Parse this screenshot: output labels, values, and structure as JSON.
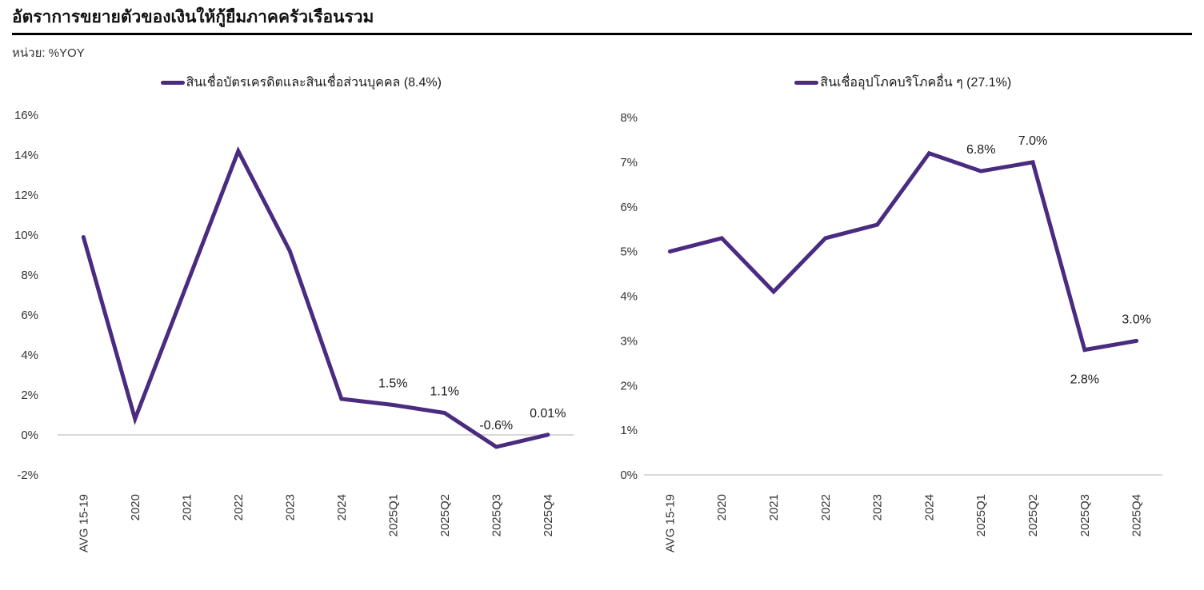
{
  "page": {
    "title": "อัตราการขยายตัวของเงินให้กู้ยืมภาคครัวเรือนรวม",
    "unit_label": "หน่วย: %YOY"
  },
  "colors": {
    "line": "#4A2B80",
    "grid": "#D9D9D9",
    "axis_text": "#333333",
    "title_rule": "#000000"
  },
  "chart_data": [
    {
      "type": "line",
      "legend": "สินเชื่อบัตรเครดิตและสินเชื่อส่วนบุคคล (8.4%)",
      "legend_position": "top-center",
      "categories": [
        "AVG 15-19",
        "2020",
        "2021",
        "2022",
        "2023",
        "2024",
        "2025Q1",
        "2025Q2",
        "2025Q3",
        "2025Q4"
      ],
      "values": [
        9.9,
        0.8,
        7.5,
        14.2,
        9.2,
        1.8,
        1.5,
        1.1,
        -0.6,
        0.01
      ],
      "point_labels": [
        null,
        null,
        null,
        null,
        null,
        null,
        "1.5%",
        "1.1%",
        "-0.6%",
        "0.01%"
      ],
      "label_positions": [
        null,
        null,
        null,
        null,
        null,
        null,
        "above",
        "above",
        "above",
        "above"
      ],
      "ylim": [
        -2,
        16
      ],
      "ytick_step": 2,
      "ytick_suffix": "%",
      "grid": "zero-line-only",
      "x_label_rotation": -90
    },
    {
      "type": "line",
      "legend": "สินเชื่ออุปโภคบริโภคอื่น ๆ (27.1%)",
      "legend_position": "top-center",
      "categories": [
        "AVG 15-19",
        "2020",
        "2021",
        "2022",
        "2023",
        "2024",
        "2025Q1",
        "2025Q2",
        "2025Q3",
        "2025Q4"
      ],
      "values": [
        5.0,
        5.3,
        4.1,
        5.3,
        5.6,
        7.2,
        6.8,
        7.0,
        2.8,
        3.0
      ],
      "point_labels": [
        null,
        null,
        null,
        null,
        null,
        null,
        "6.8%",
        "7.0%",
        "2.8%",
        "3.0%"
      ],
      "label_positions": [
        null,
        null,
        null,
        null,
        null,
        null,
        "above",
        "above",
        "below",
        "above"
      ],
      "ylim": [
        0,
        8
      ],
      "ytick_step": 1,
      "ytick_suffix": "%",
      "grid": "zero-line-only",
      "x_label_rotation": -90
    }
  ]
}
